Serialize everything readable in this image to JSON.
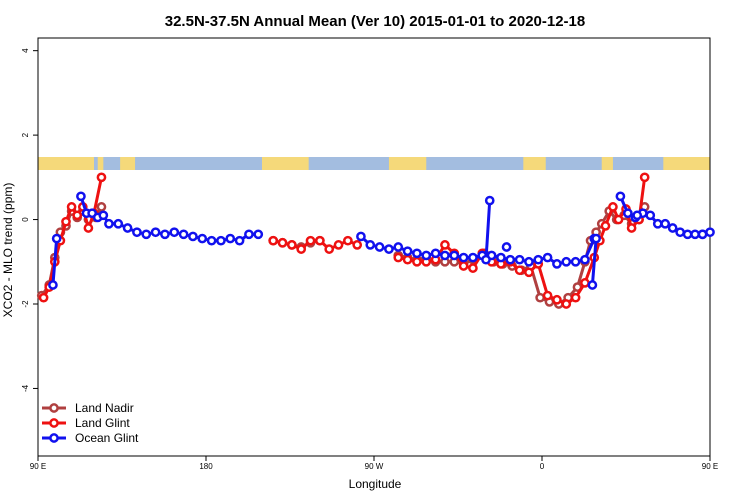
{
  "chart_data": {
    "type": "line",
    "title": "32.5N-37.5N Annual Mean (Ver 10)   2015-01-01 to 2020-12-18",
    "xlabel": "Longitude",
    "ylabel": "XCO2 - MLO trend (ppm)",
    "xlim": [
      90,
      450
    ],
    "ylim": [
      -5.6,
      4.3
    ],
    "x_ticks": [
      {
        "value": 90,
        "label": "90 E"
      },
      {
        "value": 180,
        "label": "180"
      },
      {
        "value": 270,
        "label": "90 W"
      },
      {
        "value": 360,
        "label": "0"
      },
      {
        "value": 450,
        "label": "90 E"
      },
      {
        "value": 540,
        "label": "180"
      }
    ],
    "y_ticks": [
      -4,
      -2,
      0,
      2,
      4
    ],
    "grid": false,
    "legend_position": "bottom-left",
    "land_ocean_strip": {
      "land_color": "#f5d97a",
      "ocean_color": "#a3bde0",
      "land_ranges": [
        [
          90,
          120
        ],
        [
          122,
          125
        ],
        [
          134,
          142
        ],
        [
          210,
          235
        ],
        [
          278,
          298
        ],
        [
          350,
          362
        ],
        [
          392,
          398
        ],
        [
          425,
          450
        ],
        [
          452,
          455
        ],
        [
          464,
          472
        ],
        [
          480,
          487
        ]
      ]
    },
    "series": [
      {
        "name": "Land Nadir",
        "color": "#b04040",
        "segments": [
          [
            [
              92,
              -1.8
            ],
            [
              96,
              -1.55
            ],
            [
              99,
              -0.9
            ],
            [
              102,
              -0.3
            ],
            [
              105,
              -0.15
            ],
            [
              108,
              0.2
            ],
            [
              111,
              0.05
            ],
            [
              114,
              0.2
            ],
            [
              117,
              0.0
            ],
            [
              121,
              0.05
            ],
            [
              124,
              0.3
            ]
          ],
          [
            [
              216,
              -0.5
            ],
            [
              221,
              -0.55
            ],
            [
              226,
              -0.6
            ],
            [
              231,
              -0.65
            ],
            [
              236,
              -0.55
            ],
            [
              241,
              -0.5
            ]
          ],
          [
            [
              283,
              -0.85
            ],
            [
              288,
              -0.9
            ],
            [
              293,
              -0.95
            ],
            [
              298,
              -0.9
            ],
            [
              303,
              -1.0
            ],
            [
              308,
              -1.0
            ],
            [
              313,
              -1.0
            ],
            [
              318,
              -1.05
            ],
            [
              323,
              -0.95
            ],
            [
              329,
              -0.8
            ],
            [
              334,
              -1.0
            ],
            [
              339,
              -1.05
            ],
            [
              344,
              -1.1
            ],
            [
              349,
              -1.2
            ],
            [
              354,
              -1.1
            ],
            [
              359,
              -1.85
            ],
            [
              364,
              -1.95
            ],
            [
              369,
              -2.0
            ],
            [
              374,
              -1.85
            ],
            [
              379,
              -1.6
            ],
            [
              383,
              -1.0
            ],
            [
              386,
              -0.5
            ],
            [
              389,
              -0.3
            ],
            [
              392,
              -0.1
            ],
            [
              396,
              0.2
            ],
            [
              400,
              0.0
            ],
            [
              404,
              0.1
            ],
            [
              408,
              -0.1
            ],
            [
              412,
              0.0
            ],
            [
              415,
              0.3
            ]
          ]
        ]
      },
      {
        "name": "Land Glint",
        "color": "#ee1111",
        "segments": [
          [
            [
              93,
              -1.85
            ],
            [
              96,
              -1.6
            ],
            [
              99,
              -1.0
            ],
            [
              102,
              -0.5
            ],
            [
              105,
              -0.05
            ],
            [
              108,
              0.3
            ],
            [
              111,
              0.1
            ],
            [
              114,
              0.3
            ],
            [
              117,
              -0.2
            ],
            [
              120,
              0.15
            ],
            [
              124,
              1.0
            ]
          ],
          [
            [
              216,
              -0.5
            ],
            [
              221,
              -0.55
            ],
            [
              226,
              -0.6
            ],
            [
              231,
              -0.7
            ],
            [
              236,
              -0.5
            ],
            [
              241,
              -0.5
            ],
            [
              246,
              -0.7
            ],
            [
              251,
              -0.6
            ],
            [
              256,
              -0.5
            ],
            [
              261,
              -0.6
            ]
          ],
          [
            [
              283,
              -0.9
            ],
            [
              288,
              -0.95
            ],
            [
              293,
              -1.0
            ],
            [
              298,
              -1.0
            ],
            [
              303,
              -0.95
            ],
            [
              308,
              -0.6
            ],
            [
              313,
              -0.8
            ],
            [
              318,
              -1.1
            ],
            [
              323,
              -1.15
            ],
            [
              328,
              -0.8
            ],
            [
              333,
              -1.0
            ],
            [
              338,
              -1.05
            ],
            [
              343,
              -1.0
            ],
            [
              348,
              -1.2
            ],
            [
              353,
              -1.25
            ],
            [
              358,
              -1.05
            ],
            [
              363,
              -1.8
            ],
            [
              368,
              -1.9
            ],
            [
              373,
              -2.0
            ],
            [
              378,
              -1.85
            ],
            [
              383,
              -1.5
            ],
            [
              388,
              -0.9
            ],
            [
              391,
              -0.5
            ],
            [
              394,
              -0.15
            ],
            [
              398,
              0.3
            ],
            [
              401,
              0.0
            ],
            [
              405,
              0.25
            ],
            [
              408,
              -0.2
            ],
            [
              412,
              0.0
            ],
            [
              415,
              1.0
            ]
          ]
        ]
      },
      {
        "name": "Ocean Glint",
        "color": "#1111ee",
        "segments": [
          [
            [
              98,
              -1.55
            ],
            [
              100,
              -0.45
            ]
          ],
          [
            [
              113,
              0.55
            ],
            [
              116,
              0.15
            ],
            [
              119,
              0.15
            ],
            [
              122,
              0.05
            ],
            [
              125,
              0.1
            ],
            [
              128,
              -0.1
            ],
            [
              133,
              -0.1
            ],
            [
              138,
              -0.2
            ],
            [
              143,
              -0.3
            ],
            [
              148,
              -0.35
            ],
            [
              153,
              -0.3
            ],
            [
              158,
              -0.35
            ],
            [
              163,
              -0.3
            ],
            [
              168,
              -0.35
            ],
            [
              173,
              -0.4
            ],
            [
              178,
              -0.45
            ],
            [
              183,
              -0.5
            ],
            [
              188,
              -0.5
            ],
            [
              193,
              -0.45
            ],
            [
              198,
              -0.5
            ],
            [
              203,
              -0.35
            ],
            [
              208,
              -0.35
            ]
          ],
          [
            [
              263,
              -0.4
            ],
            [
              268,
              -0.6
            ],
            [
              273,
              -0.65
            ],
            [
              278,
              -0.7
            ],
            [
              283,
              -0.65
            ],
            [
              288,
              -0.75
            ],
            [
              293,
              -0.8
            ],
            [
              298,
              -0.85
            ],
            [
              303,
              -0.8
            ],
            [
              308,
              -0.85
            ],
            [
              313,
              -0.85
            ],
            [
              318,
              -0.9
            ],
            [
              323,
              -0.9
            ],
            [
              328,
              -0.85
            ],
            [
              333,
              -0.85
            ],
            [
              338,
              -0.9
            ],
            [
              343,
              -0.95
            ],
            [
              348,
              -0.95
            ],
            [
              353,
              -1.0
            ],
            [
              358,
              -0.95
            ],
            [
              363,
              -0.9
            ],
            [
              368,
              -1.05
            ],
            [
              373,
              -1.0
            ],
            [
              378,
              -1.0
            ],
            [
              383,
              -0.95
            ],
            [
              388,
              -0.45
            ]
          ],
          [
            [
              402,
              0.55
            ],
            [
              406,
              0.15
            ],
            [
              410,
              0.05
            ],
            [
              414,
              0.15
            ],
            [
              418,
              0.1
            ],
            [
              422,
              -0.1
            ],
            [
              426,
              -0.1
            ],
            [
              430,
              -0.2
            ],
            [
              434,
              -0.3
            ],
            [
              438,
              -0.35
            ],
            [
              442,
              -0.35
            ],
            [
              446,
              -0.35
            ]
          ],
          [
            [
              330,
              -0.95
            ],
            [
              332,
              0.45
            ]
          ],
          [
            [
              341,
              -0.65
            ]
          ],
          [
            [
              387,
              -1.55
            ],
            [
              389,
              -0.45
            ]
          ],
          [
            [
              411,
              0.1
            ]
          ],
          [
            [
              446,
              -0.35
            ],
            [
              450,
              -0.3
            ]
          ]
        ]
      }
    ]
  }
}
